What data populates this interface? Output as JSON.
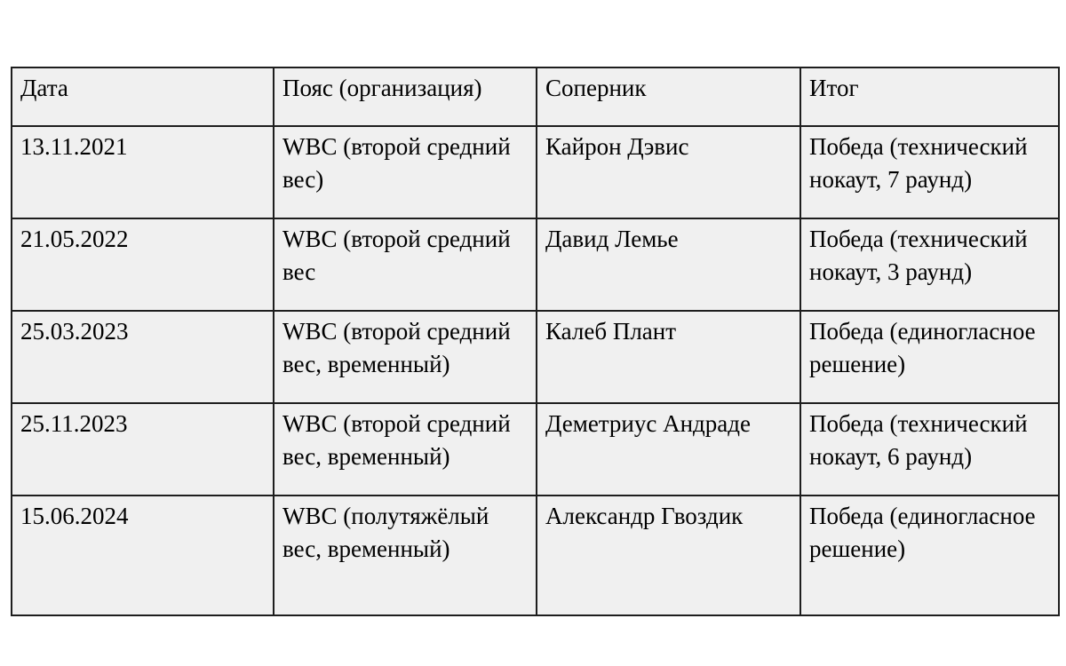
{
  "page": {
    "background": "#ffffff"
  },
  "table": {
    "columns": [
      "Дата",
      "Пояс (организация)",
      "Соперник",
      "Итог"
    ],
    "rows": [
      {
        "date": "13.11.2021",
        "belt": "WBC (второй средний вес)",
        "opponent": "Кайрон Дэвис",
        "result": "Победа (технический нокаут, 7 раунд)"
      },
      {
        "date": "21.05.2022",
        "belt": "WBC (второй средний вес",
        "opponent": "Давид Лемье",
        "result": "Победа (технический нокаут, 3 раунд)"
      },
      {
        "date": "25.03.2023",
        "belt": "WBC (второй средний вес, временный)",
        "opponent": "Калеб Плант",
        "result": "Победа (единогласное решение)"
      },
      {
        "date": "25.11.2023",
        "belt": "WBC (второй средний вес, временный)",
        "opponent": "Деметриус Андраде",
        "result": "Победа (технический нокаут, 6 раунд)"
      },
      {
        "date": "15.06.2024",
        "belt": "WBC (полутяжёлый вес, временный)",
        "opponent": "Александр Гвоздик",
        "result": "Победа (единогласное решение)"
      }
    ],
    "colors": {
      "cell_background": "#f0f0f0",
      "border": "#1e1e1e",
      "text": "#000000"
    }
  }
}
